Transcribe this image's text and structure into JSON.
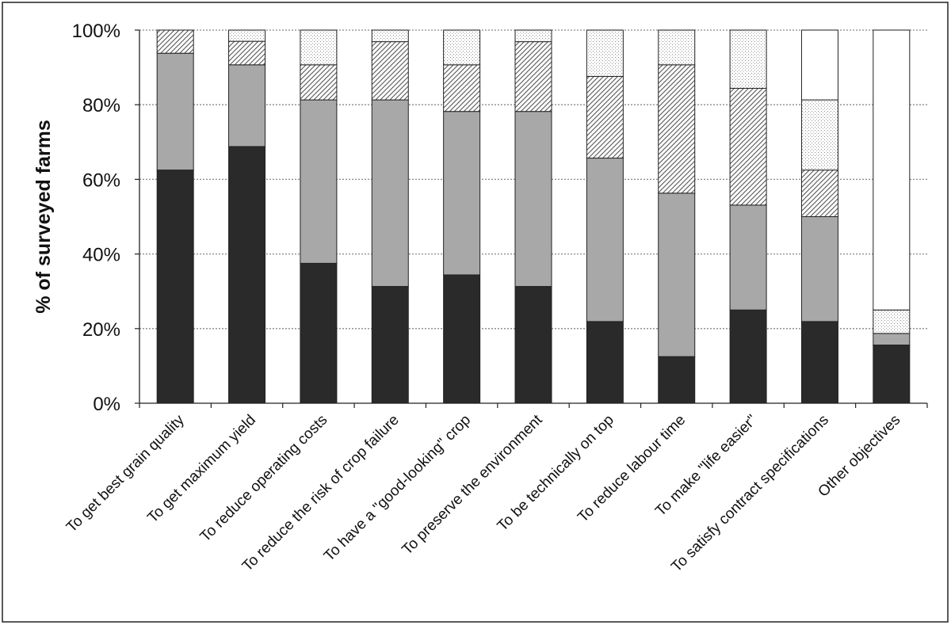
{
  "chart_data": {
    "type": "bar",
    "stacked": true,
    "percent_stacked": true,
    "title": "",
    "xlabel": "",
    "ylabel": "% of surveyed farms",
    "ylim": [
      0,
      100
    ],
    "yticks": [
      "0%",
      "20%",
      "40%",
      "60%",
      "80%",
      "100%"
    ],
    "grid": "horizontal dotted",
    "legend": "none",
    "categories": [
      "To get best grain quality",
      "To get maximum yield",
      "To reduce operating costs",
      "To reduce the risk of crop failure",
      "To have a \"good-looking\" crop",
      "To preserve the environment",
      "To be technically on top",
      "To reduce labour time",
      "To make \"life easier\"",
      "To satisfy contract specifications",
      "Other objectives"
    ],
    "series": [
      {
        "values": [
          62.5,
          68.8,
          37.5,
          31.3,
          34.4,
          31.3,
          21.9,
          12.5,
          25.0,
          21.9,
          15.6
        ],
        "color": "#2a2a2a",
        "pattern": "solid-dark"
      },
      {
        "values": [
          31.3,
          21.9,
          43.8,
          50.0,
          43.8,
          46.9,
          43.8,
          43.8,
          28.1,
          28.1,
          3.1
        ],
        "color": "#a8a8a8",
        "pattern": "solid-grey"
      },
      {
        "values": [
          6.2,
          6.3,
          9.4,
          15.6,
          12.5,
          18.7,
          21.9,
          34.4,
          31.3,
          12.5,
          0
        ],
        "color": "#ffffff",
        "pattern": "diagonal-hatch"
      },
      {
        "values": [
          0,
          3.0,
          9.3,
          3.1,
          9.3,
          3.1,
          12.4,
          9.3,
          15.6,
          18.8,
          6.3
        ],
        "color": "#ffffff",
        "pattern": "dots"
      },
      {
        "values": [
          0,
          0,
          0,
          0,
          0,
          0,
          0,
          0,
          0,
          18.7,
          75.0
        ],
        "color": "#ffffff",
        "pattern": "white"
      }
    ]
  }
}
